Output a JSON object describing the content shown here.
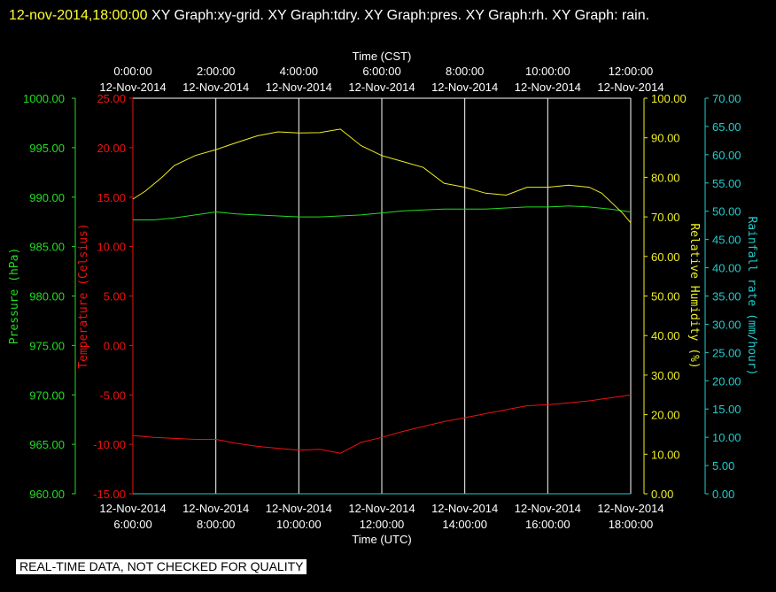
{
  "header": {
    "timestamp": "12-nov-2014,18:00:00",
    "title": "XY Graph:xy-grid.  XY Graph:tdry.  XY Graph:pres.  XY Graph:rh.  XY Graph: rain."
  },
  "quality_note": "REAL-TIME DATA, NOT CHECKED FOR QUALITY",
  "colors": {
    "pressure": "#22dd22",
    "temperature": "#ee1111",
    "humidity": "#eeee22",
    "rainfall": "#22cccc",
    "grid": "#ffffff",
    "text": "#ffffff",
    "timestamp": "#ffff33"
  },
  "chart_data": {
    "type": "line",
    "x_top_label": "Time (CST)",
    "x_bottom_label": "Time (UTC)",
    "x_ticks_top": [
      [
        "0:00:00",
        "12-Nov-2014"
      ],
      [
        "2:00:00",
        "12-Nov-2014"
      ],
      [
        "4:00:00",
        "12-Nov-2014"
      ],
      [
        "6:00:00",
        "12-Nov-2014"
      ],
      [
        "8:00:00",
        "12-Nov-2014"
      ],
      [
        "10:00:00",
        "12-Nov-2014"
      ],
      [
        "12:00:00",
        "12-Nov-2014"
      ]
    ],
    "x_ticks_bottom": [
      [
        "12-Nov-2014",
        "6:00:00"
      ],
      [
        "12-Nov-2014",
        "8:00:00"
      ],
      [
        "12-Nov-2014",
        "10:00:00"
      ],
      [
        "12-Nov-2014",
        "12:00:00"
      ],
      [
        "12-Nov-2014",
        "14:00:00"
      ],
      [
        "12-Nov-2014",
        "16:00:00"
      ],
      [
        "12-Nov-2014",
        "18:00:00"
      ]
    ],
    "xlim_utc_hours": [
      6,
      18
    ],
    "axes": {
      "pressure": {
        "label": "Pressure (hPa)",
        "ylim": [
          960,
          1000
        ],
        "ticks": [
          "1000.00",
          "995.00",
          "990.00",
          "985.00",
          "980.00",
          "975.00",
          "970.00",
          "965.00",
          "960.00"
        ]
      },
      "temperature": {
        "label": "Temperature (Celsius)",
        "ylim": [
          -15,
          25
        ],
        "ticks": [
          "25.00",
          "20.00",
          "15.00",
          "10.00",
          "5.00",
          "0.00",
          "-5.00",
          "-10.00",
          "-15.00"
        ]
      },
      "humidity": {
        "label": "Relative Humidity (%)",
        "ylim": [
          0,
          100
        ],
        "ticks": [
          "100.00",
          "90.00",
          "80.00",
          "70.00",
          "60.00",
          "50.00",
          "40.00",
          "30.00",
          "20.00",
          "10.00",
          "0.00"
        ]
      },
      "rainfall": {
        "label": "Rainfall rate (mm/hour)",
        "ylim": [
          0,
          70
        ],
        "ticks": [
          "70.00",
          "65.00",
          "60.00",
          "55.00",
          "50.00",
          "45.00",
          "40.00",
          "35.00",
          "30.00",
          "25.00",
          "20.00",
          "15.00",
          "10.00",
          "5.00",
          "0.00"
        ]
      }
    },
    "series": [
      {
        "name": "pres",
        "axis": "pressure",
        "x": [
          6,
          6.5,
          7,
          7.5,
          8,
          8.5,
          9,
          9.5,
          10,
          10.5,
          11,
          11.5,
          12,
          12.5,
          13,
          13.5,
          14,
          14.5,
          15,
          15.5,
          16,
          16.5,
          17,
          17.5,
          18
        ],
        "y": [
          987.7,
          987.7,
          987.9,
          988.2,
          988.5,
          988.3,
          988.2,
          988.1,
          988.0,
          988.0,
          988.1,
          988.2,
          988.4,
          988.6,
          988.7,
          988.8,
          988.8,
          988.8,
          988.9,
          989.0,
          989.0,
          989.1,
          989.0,
          988.8,
          988.5
        ]
      },
      {
        "name": "tdry",
        "axis": "temperature",
        "x": [
          6,
          6.5,
          7,
          7.5,
          8,
          8.5,
          9,
          9.5,
          10,
          10.5,
          11,
          11.5,
          12,
          12.5,
          13,
          13.5,
          14,
          14.5,
          15,
          15.5,
          16,
          16.5,
          17,
          17.5,
          18
        ],
        "y": [
          -9.1,
          -9.3,
          -9.4,
          -9.5,
          -9.5,
          -9.9,
          -10.2,
          -10.4,
          -10.6,
          -10.5,
          -10.9,
          -9.8,
          -9.3,
          -8.7,
          -8.2,
          -7.7,
          -7.3,
          -6.9,
          -6.5,
          -6.1,
          -6.0,
          -5.8,
          -5.6,
          -5.3,
          -5.0
        ]
      },
      {
        "name": "rh",
        "axis": "humidity",
        "x": [
          6,
          6.3,
          6.7,
          7,
          7.5,
          8,
          8.5,
          9,
          9.5,
          10,
          10.5,
          11,
          11.5,
          12,
          12.5,
          13,
          13.5,
          14,
          14.5,
          15,
          15.5,
          16,
          16.5,
          17,
          17.3,
          17.6,
          17.8,
          18
        ],
        "y": [
          74.5,
          76.5,
          80,
          83,
          85.5,
          87,
          88.8,
          90.5,
          91.5,
          91.2,
          91.3,
          92.2,
          88,
          85.5,
          84,
          82.5,
          78.5,
          77.5,
          76,
          75.5,
          77.5,
          77.5,
          78,
          77.5,
          76,
          73,
          71,
          68.5
        ]
      },
      {
        "name": "rain",
        "axis": "rainfall",
        "x": [
          6,
          18
        ],
        "y": [
          0,
          0
        ]
      }
    ]
  }
}
